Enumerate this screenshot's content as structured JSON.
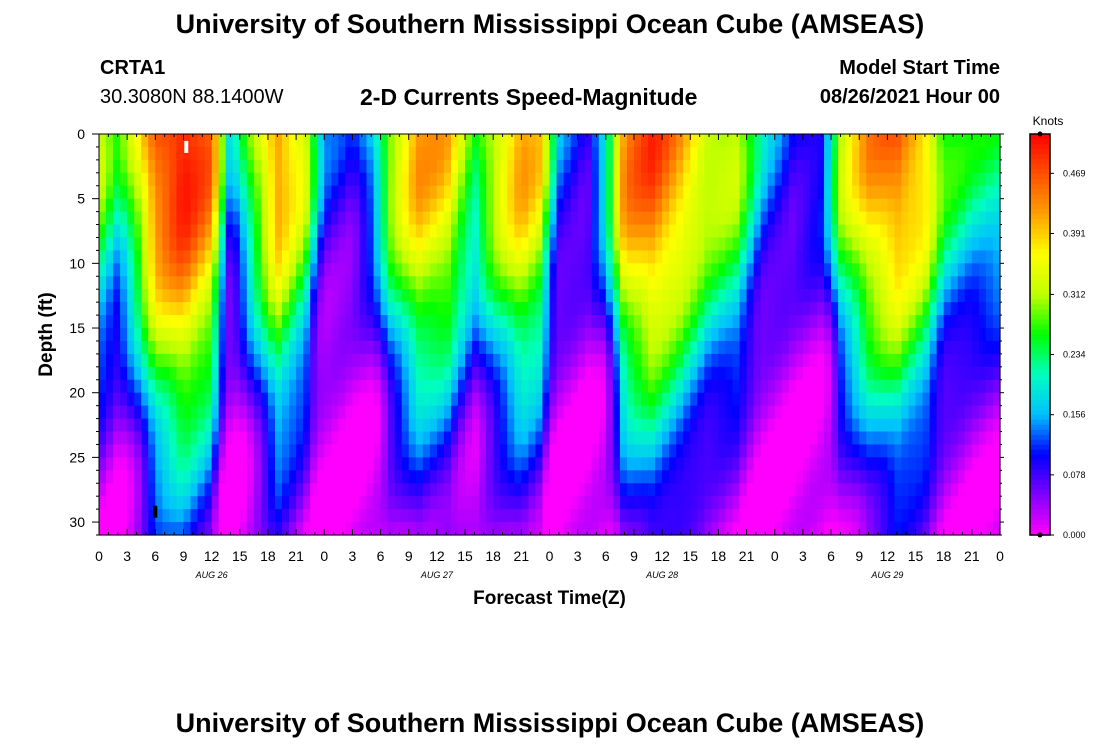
{
  "header": {
    "title_top": "University of Southern Mississippi Ocean Cube (AMSEAS)",
    "title_bottom": "University of Southern Mississippi Ocean Cube (AMSEAS)",
    "station_id": "CRTA1",
    "station_coords": "30.3080N  88.1400W",
    "model_label": "Model Start Time",
    "model_date": "08/26/2021 Hour 00"
  },
  "chart_data": {
    "type": "heatmap",
    "title": "2-D Currents Speed-Magnitude",
    "xlabel": "Forecast Time(Z)",
    "ylabel": "Depth (ft)",
    "x_tick_labels": [
      "0",
      "3",
      "6",
      "9",
      "12",
      "15",
      "18",
      "21",
      "0",
      "3",
      "6",
      "9",
      "12",
      "15",
      "18",
      "21",
      "0",
      "3",
      "6",
      "9",
      "12",
      "15",
      "18",
      "21",
      "0",
      "3",
      "6",
      "9",
      "12",
      "15",
      "18",
      "21",
      "0"
    ],
    "x_range_hours": [
      0,
      96
    ],
    "date_labels": [
      {
        "label": "AUG 26",
        "hour": 12
      },
      {
        "label": "AUG 27",
        "hour": 36
      },
      {
        "label": "AUG 28",
        "hour": 60
      },
      {
        "label": "AUG 29",
        "hour": 84
      }
    ],
    "y_ticks": [
      0,
      5,
      10,
      15,
      20,
      25,
      30
    ],
    "ylim": [
      0,
      31
    ],
    "y_inverted": true,
    "colorbar": {
      "unit": "Knots",
      "ticks": [
        0.0,
        0.078,
        0.156,
        0.234,
        0.312,
        0.391,
        0.469
      ],
      "tick_labels": [
        "0.000",
        "0.078",
        "0.156",
        "0.234",
        "0.312",
        "0.391",
        "0.469"
      ],
      "range": [
        0.0,
        0.52
      ],
      "colors": [
        "#ff00ff",
        "#8000ff",
        "#0000ff",
        "#00c0ff",
        "#00ffc0",
        "#00ff00",
        "#c0ff00",
        "#ffff00",
        "#ffa000",
        "#ff5000",
        "#ff0000"
      ]
    },
    "surface_speed_by_hour": [
      [
        0,
        0.32
      ],
      [
        2,
        0.24
      ],
      [
        4,
        0.34
      ],
      [
        6,
        0.47
      ],
      [
        9,
        0.52
      ],
      [
        12,
        0.45
      ],
      [
        14,
        0.14
      ],
      [
        16,
        0.28
      ],
      [
        19,
        0.44
      ],
      [
        22,
        0.34
      ],
      [
        24,
        0.12
      ],
      [
        27,
        0.09
      ],
      [
        29,
        0.17
      ],
      [
        31,
        0.32
      ],
      [
        34,
        0.42
      ],
      [
        37,
        0.4
      ],
      [
        40,
        0.26
      ],
      [
        42,
        0.34
      ],
      [
        45,
        0.42
      ],
      [
        47,
        0.38
      ],
      [
        49,
        0.14
      ],
      [
        52,
        0.09
      ],
      [
        54,
        0.22
      ],
      [
        56,
        0.44
      ],
      [
        59,
        0.48
      ],
      [
        62,
        0.42
      ],
      [
        65,
        0.34
      ],
      [
        68,
        0.32
      ],
      [
        71,
        0.16
      ],
      [
        74,
        0.1
      ],
      [
        77,
        0.12
      ],
      [
        79,
        0.32
      ],
      [
        82,
        0.42
      ],
      [
        85,
        0.46
      ],
      [
        88,
        0.4
      ],
      [
        90,
        0.28
      ],
      [
        93,
        0.24
      ],
      [
        96,
        0.24
      ]
    ],
    "markers": [
      {
        "hour": 9.3,
        "depth": 1.0,
        "color": "#ffffff"
      },
      {
        "hour": 6.0,
        "depth": 29.2,
        "color": "#000000"
      }
    ]
  }
}
